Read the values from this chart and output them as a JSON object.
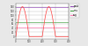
{
  "title": "",
  "background_color": "#e8e8e8",
  "plot_bg_color": "#ffffff",
  "grid_color": "#aaaaaa",
  "x_min": 0,
  "x_max": 400,
  "y_min": -10,
  "y_max": 155,
  "y_ticks": [
    0,
    20,
    40,
    60,
    80,
    100,
    120,
    140
  ],
  "x_ticks": [
    0,
    100,
    200,
    300,
    400
  ],
  "half_wave_color": "#ff4444",
  "peak_line_value": 141,
  "peak_line_color": "#9955bb",
  "rms_line_value": 70,
  "rms_line_color": "#55aa55",
  "dc_line_value": 45,
  "dc_line_color": "#ff88bb",
  "legend_labels": [
    "peak",
    "rms",
    "avg"
  ],
  "period": 200,
  "amplitude": 141,
  "figwidth": 1.0,
  "figheight": 0.52,
  "dpi": 100
}
